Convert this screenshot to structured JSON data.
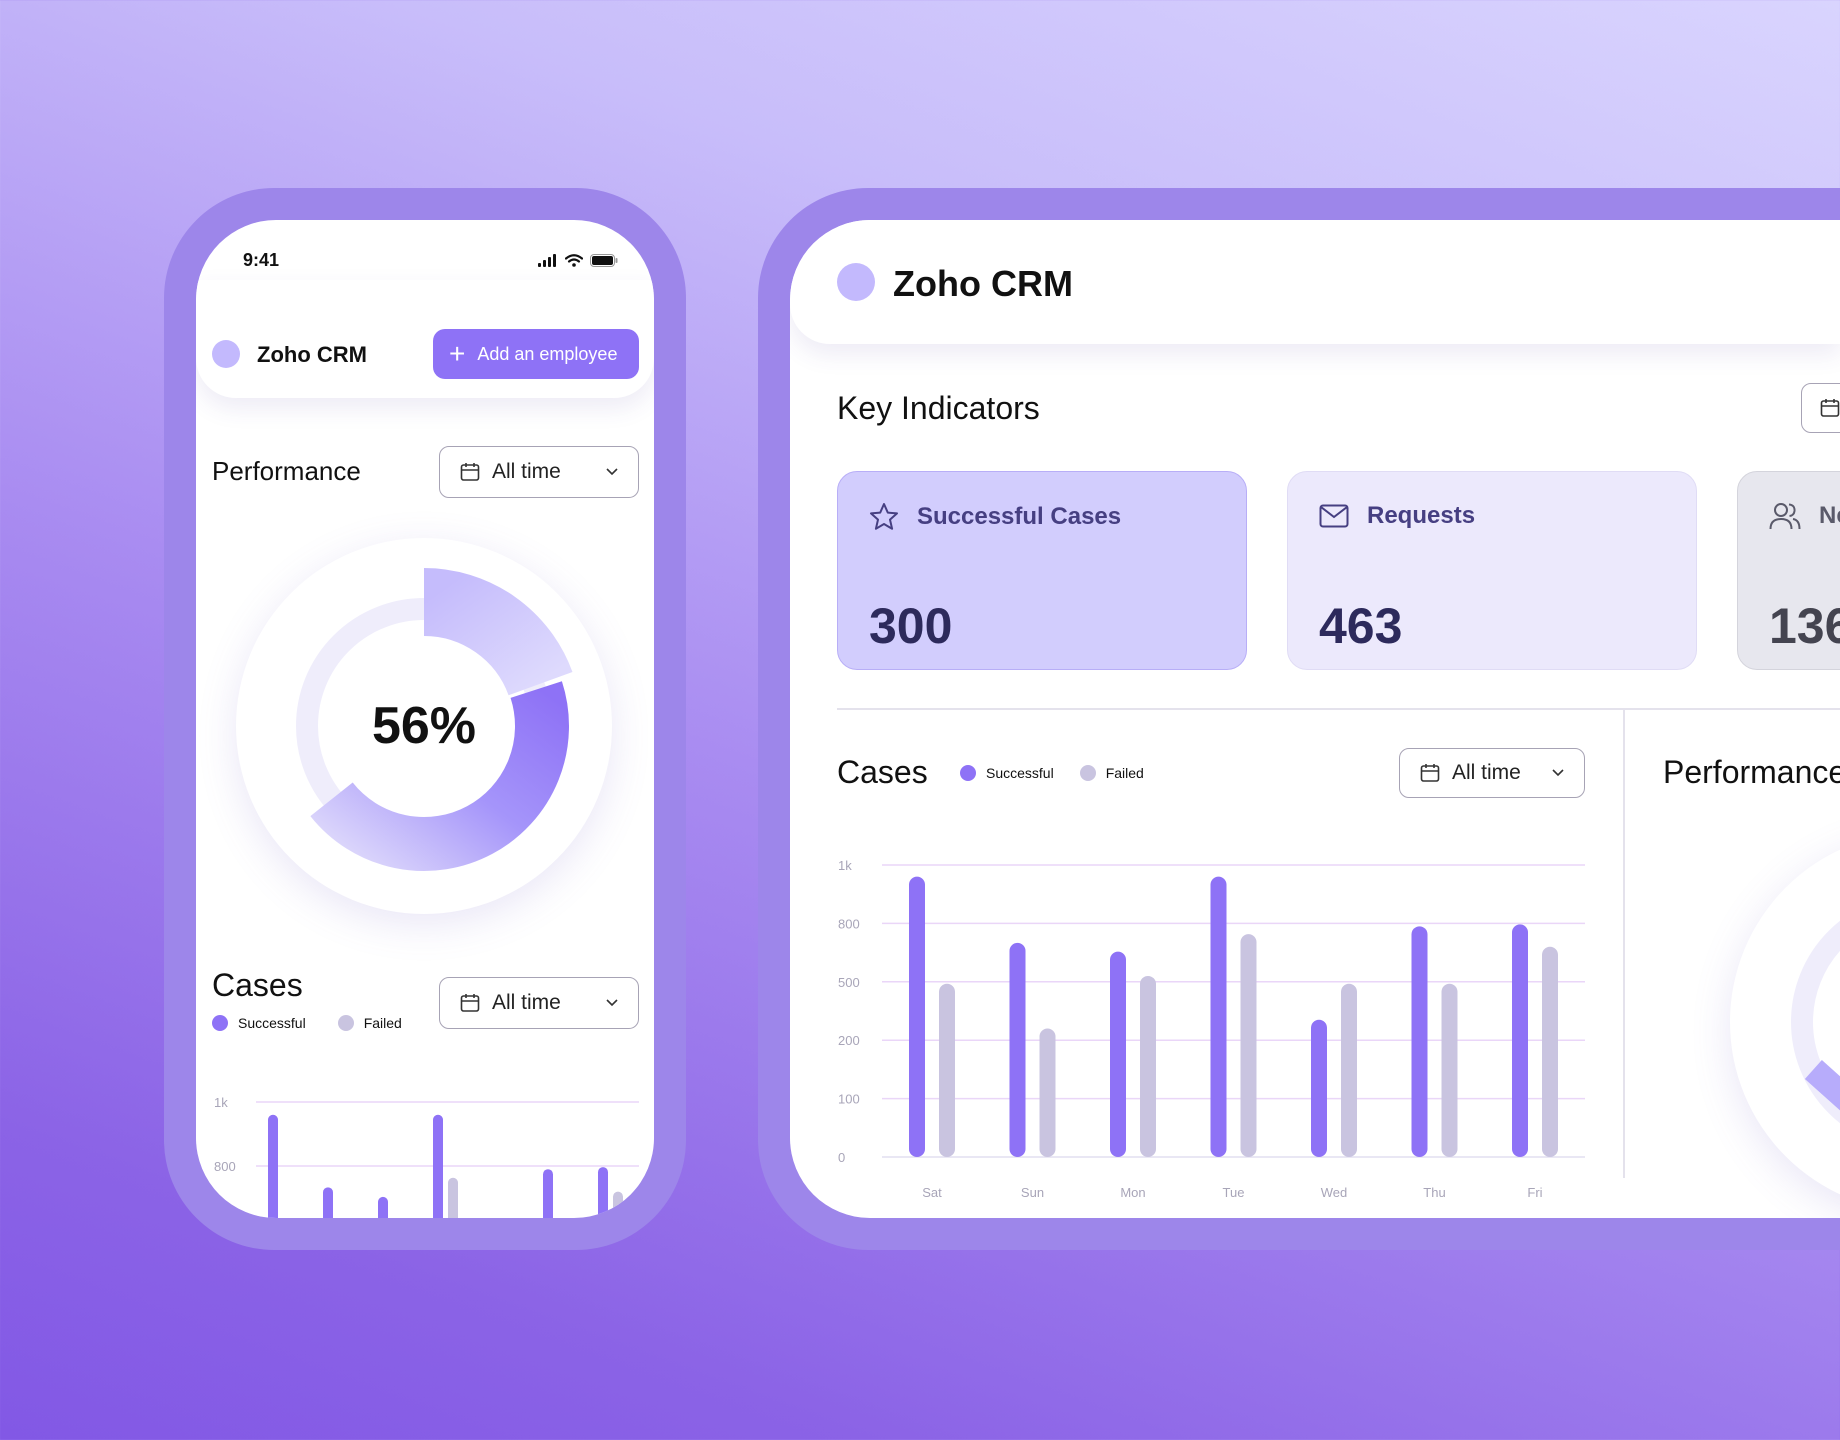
{
  "phone": {
    "status_time": "9:41",
    "brand": "Zoho CRM",
    "add_button_label": "Add an employee",
    "performance_title": "Performance",
    "performance_range": "All time",
    "performance_percent": "56%",
    "performance_value": 0.56,
    "cases_title": "Cases",
    "cases_range": "All time",
    "legend": {
      "successful": "Successful",
      "failed": "Failed"
    }
  },
  "desktop": {
    "brand": "Zoho CRM",
    "key_indicators_title": "Key Indicators",
    "kpis": [
      {
        "label": "Successful Cases",
        "value": "300",
        "icon": "star-icon"
      },
      {
        "label": "Requests",
        "value": "463",
        "icon": "mail-icon"
      },
      {
        "label": "Ne",
        "value": "136",
        "icon": "users-icon"
      }
    ],
    "cases_title": "Cases",
    "cases_range": "All time",
    "legend": {
      "successful": "Successful",
      "failed": "Failed"
    },
    "performance_title": "Performance"
  },
  "colors": {
    "accent": "#8e72f6",
    "failed": "#c9c4e0",
    "logo": "#c3b9fd"
  },
  "chart_data": [
    {
      "type": "bar",
      "categories": [
        "Sat",
        "Sun",
        "Mon",
        "Tue",
        "Wed",
        "Thu",
        "Fri"
      ],
      "ytick_labels": [
        "0",
        "100",
        "200",
        "500",
        "800",
        "1k"
      ],
      "series": [
        {
          "name": "Successful",
          "values": [
            960,
            700,
            655,
            960,
            305,
            785,
            795
          ]
        },
        {
          "name": "Failed",
          "values": [
            490,
            260,
            530,
            745,
            490,
            490,
            680
          ]
        }
      ],
      "grid": true,
      "legend_position": "top"
    }
  ]
}
